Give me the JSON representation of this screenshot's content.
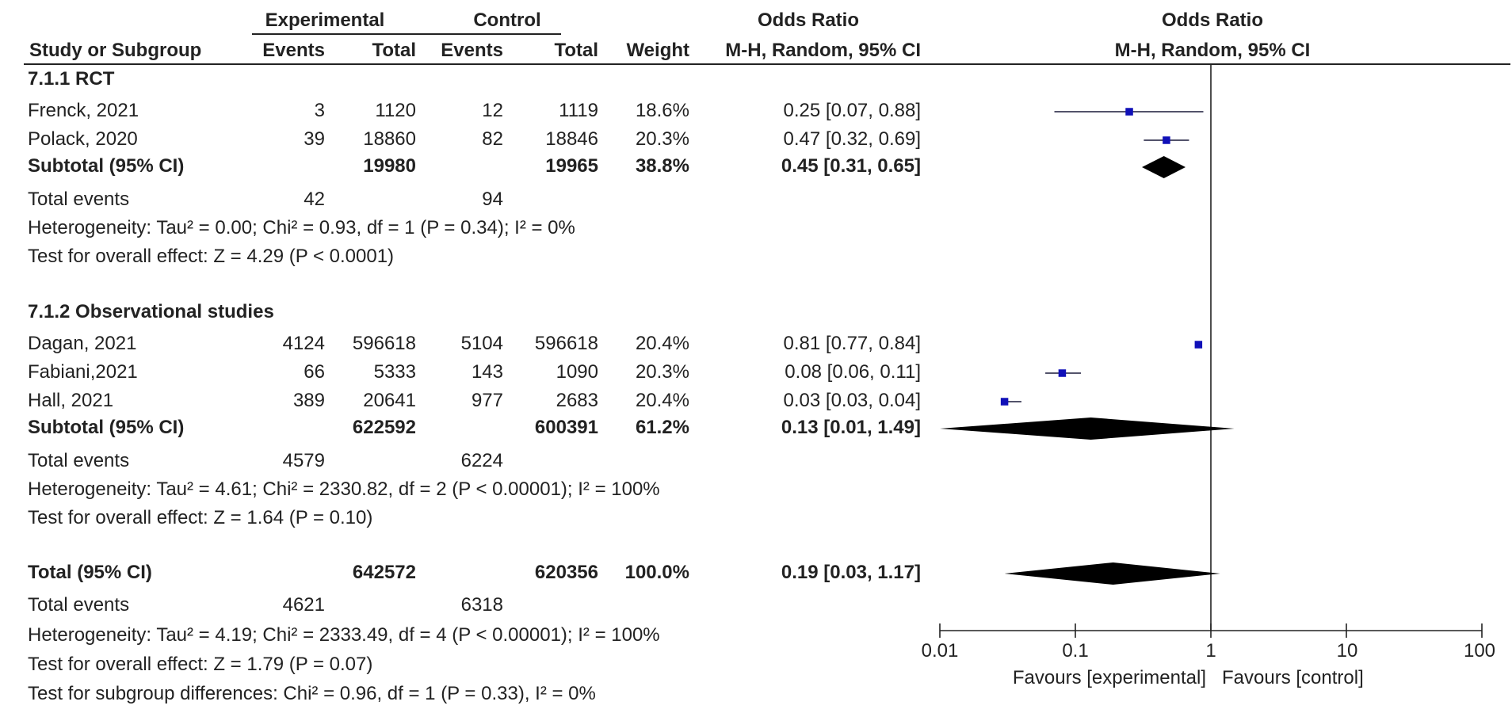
{
  "headers": {
    "group1": "Experimental",
    "group2": "Control",
    "or_top": "Odds Ratio",
    "plot_top": "Odds Ratio",
    "study_col": "Study or Subgroup",
    "events1": "Events",
    "total1": "Total",
    "events2": "Events",
    "total2": "Total",
    "weight": "Weight",
    "or_method": "M-H, Random, 95% CI",
    "plot_method": "M-H, Random, 95% CI"
  },
  "groups": [
    {
      "name": "7.1.1 RCT",
      "studies": [
        {
          "study": "Frenck, 2021",
          "e1": "3",
          "n1": "1120",
          "e2": "12",
          "n2": "1119",
          "weight": "18.6%",
          "ci_text": "0.25 [0.07, 0.88]"
        },
        {
          "study": "Polack, 2020",
          "e1": "39",
          "n1": "18860",
          "e2": "82",
          "n2": "18846",
          "weight": "20.3%",
          "ci_text": "0.47 [0.32, 0.69]"
        }
      ],
      "subtotal": {
        "label": "Subtotal (95% CI)",
        "n1": "19980",
        "n2": "19965",
        "weight": "38.8%",
        "ci_text": "0.45 [0.31, 0.65]"
      },
      "total_events": {
        "label": "Total events",
        "e1": "42",
        "e2": "94"
      },
      "heterogeneity": "Heterogeneity: Tau² = 0.00; Chi² = 0.93, df = 1 (P = 0.34); I² = 0%",
      "overall": "Test for overall effect: Z = 4.29 (P < 0.0001)"
    },
    {
      "name": "7.1.2 Observational studies",
      "studies": [
        {
          "study": "Dagan, 2021",
          "e1": "4124",
          "n1": "596618",
          "e2": "5104",
          "n2": "596618",
          "weight": "20.4%",
          "ci_text": "0.81 [0.77, 0.84]"
        },
        {
          "study": "Fabiani,2021",
          "e1": "66",
          "n1": "5333",
          "e2": "143",
          "n2": "1090",
          "weight": "20.3%",
          "ci_text": "0.08 [0.06, 0.11]"
        },
        {
          "study": "Hall, 2021",
          "e1": "389",
          "n1": "20641",
          "e2": "977",
          "n2": "2683",
          "weight": "20.4%",
          "ci_text": "0.03 [0.03, 0.04]"
        }
      ],
      "subtotal": {
        "label": "Subtotal (95% CI)",
        "n1": "622592",
        "n2": "600391",
        "weight": "61.2%",
        "ci_text": "0.13 [0.01, 1.49]"
      },
      "total_events": {
        "label": "Total events",
        "e1": "4579",
        "e2": "6224"
      },
      "heterogeneity": "Heterogeneity: Tau² = 4.61; Chi² = 2330.82, df = 2 (P < 0.00001); I² = 100%",
      "overall": "Test for overall effect: Z = 1.64 (P = 0.10)"
    }
  ],
  "total": {
    "label": "Total (95% CI)",
    "n1": "642572",
    "n2": "620356",
    "weight": "100.0%",
    "ci_text": "0.19 [0.03, 1.17]",
    "events_label": "Total events",
    "e1": "4621",
    "e2": "6318",
    "heterogeneity": "Heterogeneity: Tau² = 4.19; Chi² = 2333.49, df = 4 (P < 0.00001); I² = 100%",
    "overall": "Test for overall effect: Z = 1.79 (P = 0.07)",
    "subgroup": "Test for subgroup differences: Chi² = 0.96, df = 1 (P = 0.33), I² = 0%"
  },
  "axis": {
    "tick_labels": [
      "0.01",
      "0.1",
      "1",
      "10",
      "100"
    ],
    "favours_left": "Favours [experimental]",
    "favours_right": "Favours [control]"
  },
  "colors": {
    "marker": "#1010b8",
    "diamond": "#000000",
    "line": "#222222"
  },
  "chart_data": {
    "type": "forest",
    "title": "Odds Ratio",
    "subtitle": "M-H, Random, 95% CI",
    "scale": "log",
    "xlim": [
      0.01,
      100
    ],
    "ticks": [
      0.01,
      0.1,
      1,
      10,
      100
    ],
    "reference_line": 1,
    "studies": [
      {
        "label": "Frenck, 2021",
        "group": "7.1.1 RCT",
        "or": 0.25,
        "lo": 0.07,
        "hi": 0.88,
        "weight": 18.6
      },
      {
        "label": "Polack, 2020",
        "group": "7.1.1 RCT",
        "or": 0.47,
        "lo": 0.32,
        "hi": 0.69,
        "weight": 20.3
      },
      {
        "label": "Dagan, 2021",
        "group": "7.1.2 Observational studies",
        "or": 0.81,
        "lo": 0.77,
        "hi": 0.84,
        "weight": 20.4
      },
      {
        "label": "Fabiani,2021",
        "group": "7.1.2 Observational studies",
        "or": 0.08,
        "lo": 0.06,
        "hi": 0.11,
        "weight": 20.3
      },
      {
        "label": "Hall, 2021",
        "group": "7.1.2 Observational studies",
        "or": 0.03,
        "lo": 0.03,
        "hi": 0.04,
        "weight": 20.4
      }
    ],
    "summaries": [
      {
        "label": "Subtotal 7.1.1 RCT",
        "or": 0.45,
        "lo": 0.31,
        "hi": 0.65
      },
      {
        "label": "Subtotal 7.1.2 Observational studies",
        "or": 0.13,
        "lo": 0.01,
        "hi": 1.49
      },
      {
        "label": "Total",
        "or": 0.19,
        "lo": 0.03,
        "hi": 1.17
      }
    ],
    "xlabel_left": "Favours [experimental]",
    "xlabel_right": "Favours [control]"
  }
}
